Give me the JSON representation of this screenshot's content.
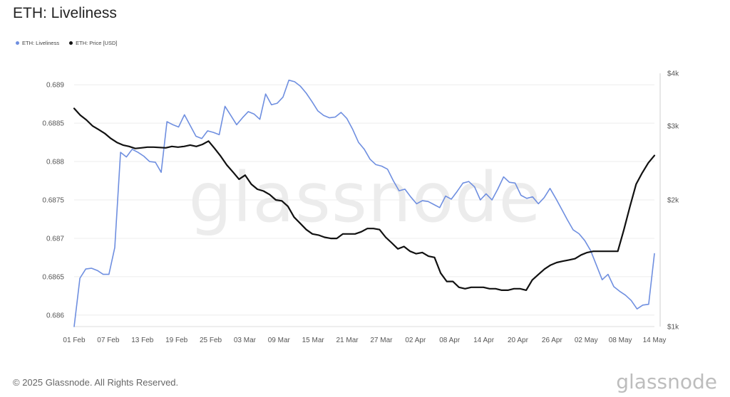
{
  "page": {
    "title": "ETH: Liveliness",
    "footer": "© 2025 Glassnode. All Rights Reserved.",
    "brand": "glassnode",
    "watermark": "glassnode"
  },
  "legend": [
    {
      "label": "ETH: Liveliness",
      "color": "#6f8fe0"
    },
    {
      "label": "ETH: Price [USD]",
      "color": "#111111"
    }
  ],
  "chart_data": {
    "type": "line",
    "title": "ETH: Liveliness",
    "x_tick_labels": [
      "01 Feb",
      "07 Feb",
      "13 Feb",
      "19 Feb",
      "25 Feb",
      "03 Mar",
      "09 Mar",
      "15 Mar",
      "21 Mar",
      "27 Mar",
      "02 Apr",
      "08 Apr",
      "14 Apr",
      "20 Apr",
      "26 Apr",
      "02 May",
      "08 May",
      "14 May"
    ],
    "x_range": [
      "2025-02-01",
      "2025-05-14"
    ],
    "y_left": {
      "ticks": [
        0.686,
        0.6865,
        0.687,
        0.6875,
        0.688,
        0.6885,
        0.689
      ],
      "range": [
        0.68585,
        0.68915
      ]
    },
    "y_right": {
      "scale": "log",
      "ticks": [
        1000,
        2000,
        3000,
        4000
      ],
      "tick_labels": [
        "$1k",
        "$2k",
        "$3k",
        "$4k"
      ],
      "range": [
        1000,
        4000
      ]
    },
    "grid": "horizontal",
    "legend_position": "top-left",
    "series": [
      {
        "name": "ETH: Liveliness",
        "axis": "left",
        "color": "#6f8fe0",
        "values": [
          0.68585,
          0.68648,
          0.6866,
          0.68661,
          0.68658,
          0.68653,
          0.68653,
          0.68688,
          0.68812,
          0.68806,
          0.68816,
          0.68812,
          0.68807,
          0.688,
          0.68799,
          0.68786,
          0.68852,
          0.68848,
          0.68845,
          0.68861,
          0.68847,
          0.68833,
          0.6883,
          0.6884,
          0.68838,
          0.68835,
          0.68872,
          0.6886,
          0.68848,
          0.68857,
          0.68865,
          0.68862,
          0.68855,
          0.68888,
          0.68874,
          0.68876,
          0.68884,
          0.68906,
          0.68904,
          0.68898,
          0.68889,
          0.68878,
          0.68866,
          0.6886,
          0.68857,
          0.68858,
          0.68864,
          0.68856,
          0.68842,
          0.68825,
          0.68816,
          0.68803,
          0.68796,
          0.68794,
          0.6879,
          0.68775,
          0.68762,
          0.68764,
          0.68754,
          0.68745,
          0.68749,
          0.68748,
          0.68744,
          0.6874,
          0.68755,
          0.68751,
          0.68761,
          0.68772,
          0.68774,
          0.68767,
          0.6875,
          0.68758,
          0.6875,
          0.68764,
          0.6878,
          0.68773,
          0.68772,
          0.68756,
          0.68752,
          0.68754,
          0.68745,
          0.68753,
          0.68765,
          0.68752,
          0.68738,
          0.68724,
          0.68711,
          0.68706,
          0.68697,
          0.68684,
          0.68665,
          0.68646,
          0.68653,
          0.68637,
          0.68631,
          0.68626,
          0.68619,
          0.68608,
          0.68613,
          0.68614,
          0.6868
        ]
      },
      {
        "name": "ETH: Price [USD]",
        "axis": "right",
        "color": "#111111",
        "values": [
          3300,
          3180,
          3100,
          3000,
          2940,
          2880,
          2800,
          2740,
          2700,
          2680,
          2650,
          2660,
          2670,
          2670,
          2665,
          2660,
          2680,
          2670,
          2680,
          2700,
          2680,
          2710,
          2760,
          2650,
          2540,
          2420,
          2330,
          2240,
          2290,
          2180,
          2120,
          2100,
          2060,
          2000,
          1990,
          1930,
          1820,
          1760,
          1700,
          1660,
          1650,
          1630,
          1620,
          1620,
          1660,
          1660,
          1660,
          1680,
          1710,
          1710,
          1700,
          1630,
          1580,
          1530,
          1550,
          1510,
          1490,
          1500,
          1470,
          1460,
          1340,
          1280,
          1280,
          1240,
          1230,
          1240,
          1240,
          1240,
          1230,
          1230,
          1220,
          1220,
          1230,
          1230,
          1220,
          1290,
          1330,
          1370,
          1400,
          1420,
          1430,
          1440,
          1450,
          1480,
          1500,
          1510,
          1510,
          1510,
          1510,
          1510,
          1700,
          1930,
          2180,
          2320,
          2450,
          2550
        ]
      }
    ]
  }
}
